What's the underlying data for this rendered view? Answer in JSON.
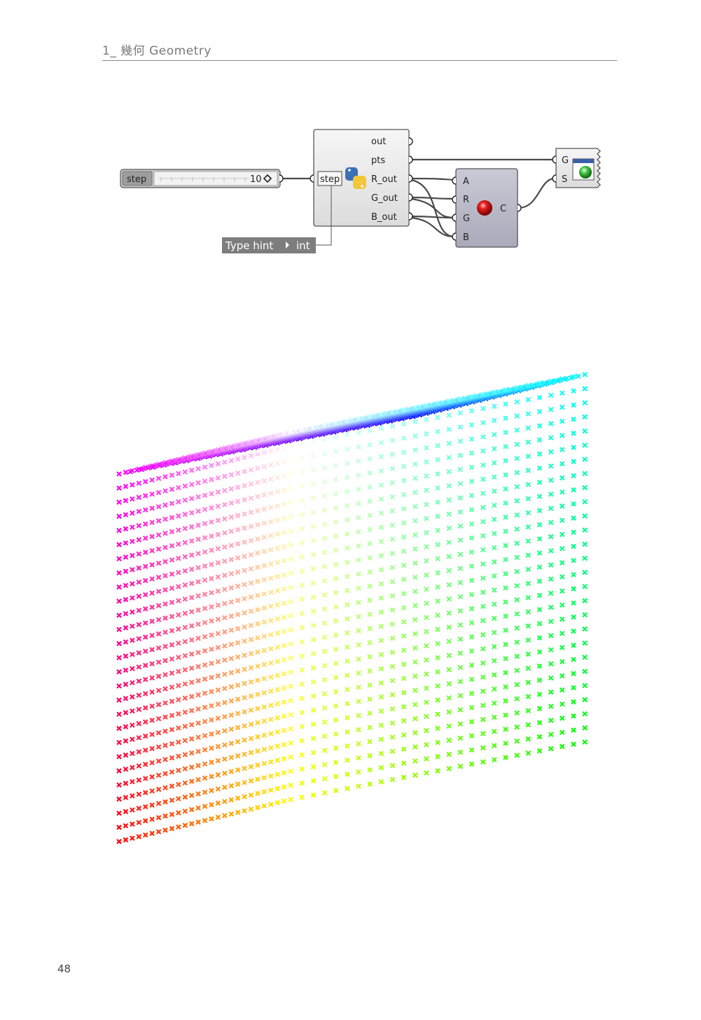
{
  "header": {
    "chapter_label": "1_ 幾何 Geometry"
  },
  "page_number": "48",
  "canvas": {
    "slider": {
      "label": "step",
      "value": "10"
    },
    "python_component": {
      "inputs": [
        "step"
      ],
      "outputs": [
        "out",
        "pts",
        "R_out",
        "G_out",
        "B_out"
      ]
    },
    "type_hint": {
      "label": "Type hint",
      "value": "int"
    },
    "colour_component": {
      "inputs": [
        "A",
        "R",
        "G",
        "B"
      ],
      "output": "C"
    },
    "preview_component": {
      "inputs": [
        "G",
        "S"
      ]
    }
  },
  "figure": {
    "grid_size": 27,
    "colors": {
      "wire": "#4a4a4a",
      "component_fill": "#eaeaea",
      "colour_fill": "#b9bac8",
      "hint_fill": "#7d7d7d"
    }
  }
}
